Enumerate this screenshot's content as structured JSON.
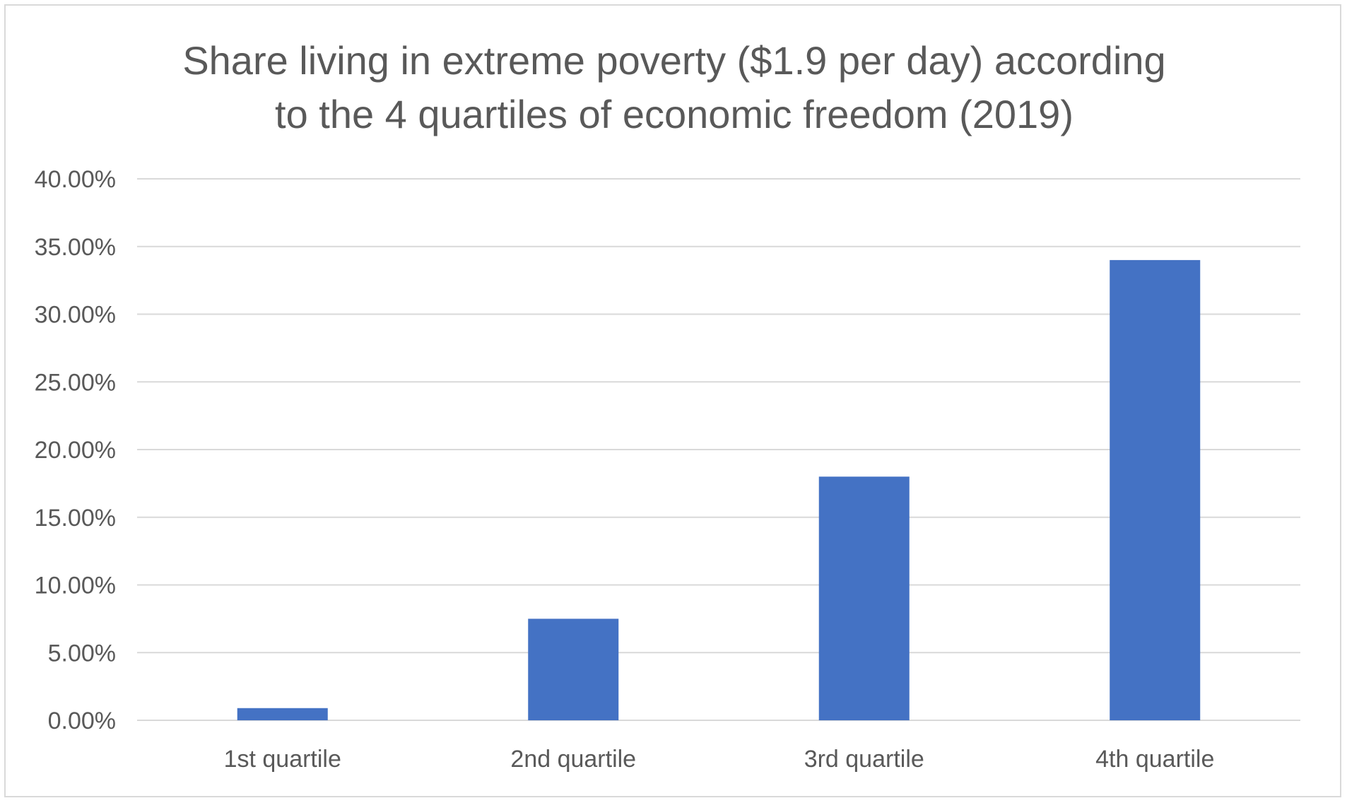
{
  "chart_data": {
    "type": "bar",
    "title": "Share living in extreme poverty ($1.9 per day) according\nto the 4 quartiles of economic freedom (2019)",
    "xlabel": "",
    "ylabel": "",
    "categories": [
      "1st quartile",
      "2nd quartile",
      "3rd quartile",
      "4th quartile"
    ],
    "values": [
      0.9,
      7.5,
      18.0,
      34.0
    ],
    "value_format": "percent_2dp",
    "ylim": [
      0,
      40
    ],
    "yticks": [
      0,
      5,
      10,
      15,
      20,
      25,
      30,
      35,
      40
    ],
    "ytick_labels": [
      "0.00%",
      "5.00%",
      "10.00%",
      "15.00%",
      "20.00%",
      "25.00%",
      "30.00%",
      "35.00%",
      "40.00%"
    ],
    "grid": true,
    "legend": "none",
    "bar_color": "#4472c4",
    "grid_color": "#d9d9d9",
    "text_color": "#595959"
  }
}
